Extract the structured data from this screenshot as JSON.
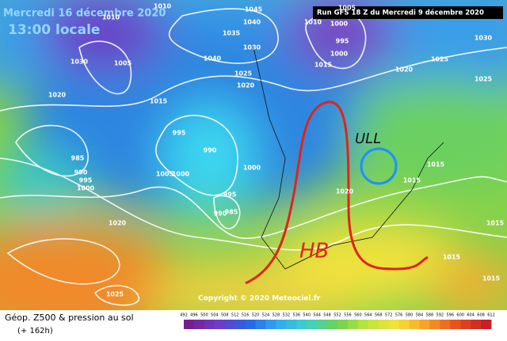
{
  "header": {
    "date": "Mercredi 16 décembre 2020",
    "time": "13:00 locale",
    "run": "Run GFS 18 Z du Mercredi 9 décembre 2020"
  },
  "map": {
    "isobar_labels": [
      "1010",
      "1010",
      "1030",
      "1005",
      "1020",
      "1015",
      "1045",
      "1040",
      "1035",
      "1030",
      "1040",
      "1025",
      "1020",
      "995",
      "990",
      "985",
      "990",
      "995",
      "1000",
      "1005",
      "1000",
      "1000",
      "995",
      "990",
      "985",
      "1000",
      "995",
      "1000",
      "1005",
      "1010",
      "1015",
      "1020",
      "1025",
      "1030",
      "1025",
      "1015",
      "1015",
      "1020",
      "1020",
      "1025",
      "1015",
      "1015",
      "1015"
    ],
    "annotations": [
      "ULL",
      "HB"
    ],
    "copyright": "Copyright © 2020 Meteociel.fr"
  },
  "footer": {
    "title": "Géop. Z500 & pression au sol",
    "lead": "(+ 162h)",
    "scale_labels": [
      "492",
      "496",
      "500",
      "504",
      "508",
      "512",
      "516",
      "520",
      "524",
      "528",
      "532",
      "536",
      "540",
      "544",
      "548",
      "552",
      "556",
      "560",
      "564",
      "568",
      "572",
      "576",
      "580",
      "584",
      "588",
      "592",
      "596",
      "600",
      "604",
      "608",
      "612"
    ]
  }
}
